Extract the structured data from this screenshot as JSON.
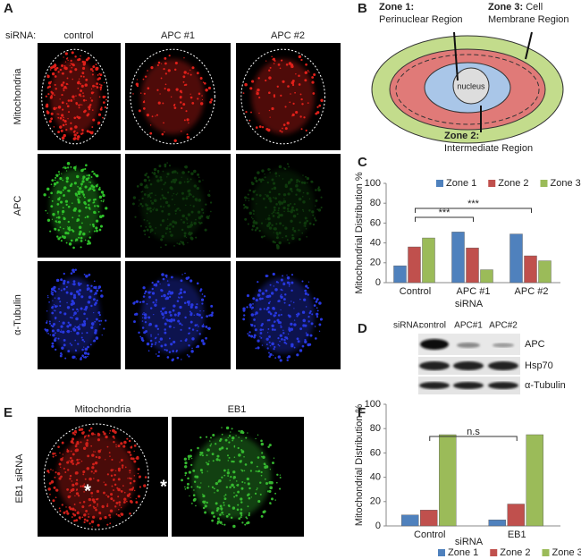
{
  "panels": {
    "A": {
      "letter": "A",
      "header": "siRNA:",
      "columns": [
        "control",
        "APC #1",
        "APC #2"
      ],
      "rows": [
        "Mitochondria",
        "APC",
        "α-Tubulin"
      ]
    },
    "B": {
      "letter": "B",
      "zone1_title": "Zone 1:",
      "zone1_name": "Perinuclear Region",
      "zone3_title": "Zone 3:",
      "zone3_name_1": "Cell",
      "zone3_name_2": "Membrane Region",
      "nucleus": "nucleus",
      "zone2_title": "Zone 2:",
      "zone2_name": "Intermediate Region"
    },
    "D": {
      "letter": "D",
      "header": "siRNA:",
      "columns": [
        "control",
        "APC#1",
        "APC#2"
      ],
      "rows": [
        "APC",
        "Hsp70",
        "α-Tubulin"
      ]
    },
    "E": {
      "letter": "E",
      "columns": [
        "Mitochondria",
        "EB1"
      ],
      "row": "EB1 siRNA",
      "marker": "*"
    }
  },
  "chart_data": [
    {
      "type": "bar",
      "panel_label": "C",
      "categories": [
        "Control",
        "APC #1",
        "APC #2"
      ],
      "series": [
        {
          "name": "Zone 1",
          "color": "#4f81bd",
          "values": [
            17,
            51,
            49
          ]
        },
        {
          "name": "Zone 2",
          "color": "#c0504d",
          "values": [
            36,
            35,
            27
          ]
        },
        {
          "name": "Zone 3",
          "color": "#9bbb59",
          "values": [
            45,
            13,
            22
          ]
        }
      ],
      "ylim": [
        0,
        100
      ],
      "yticks": [
        0,
        20,
        40,
        60,
        80,
        100
      ],
      "xlabel": "siRNA",
      "ylabel": "Mitochondrial Distribution %",
      "annotations": [
        "***",
        "***"
      ],
      "legend": "top"
    },
    {
      "type": "bar",
      "panel_label": "F",
      "categories": [
        "Control",
        "EB1"
      ],
      "series": [
        {
          "name": "Zone 1",
          "color": "#4f81bd",
          "values": [
            9,
            5
          ]
        },
        {
          "name": "Zone 2",
          "color": "#c0504d",
          "values": [
            13,
            18
          ]
        },
        {
          "name": "Zone 3",
          "color": "#9bbb59",
          "values": [
            75,
            75
          ]
        }
      ],
      "ylim": [
        0,
        100
      ],
      "yticks": [
        0,
        20,
        40,
        60,
        80,
        100
      ],
      "xlabel": "siRNA",
      "ylabel": "Mitochondrial Distribution %",
      "annotations": [
        "n.s"
      ],
      "legend": "bottom"
    }
  ]
}
